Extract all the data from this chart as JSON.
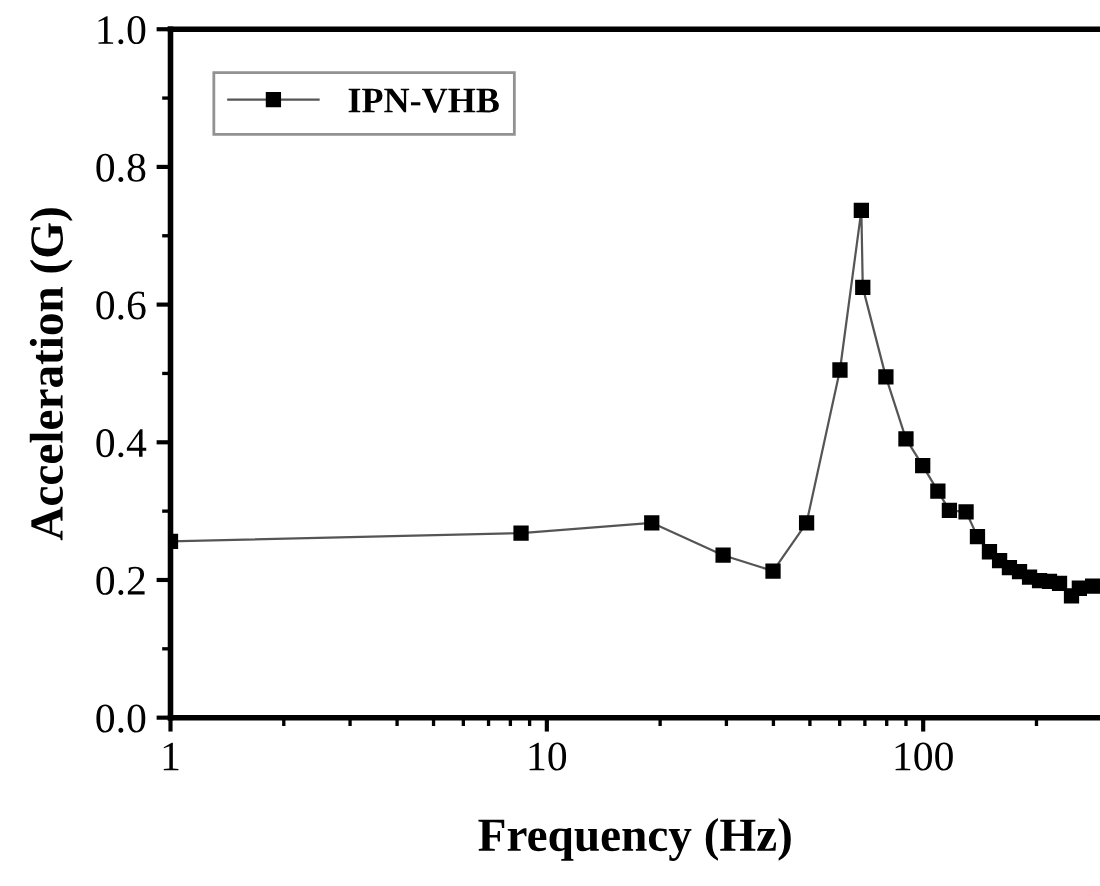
{
  "chart_data": {
    "type": "line",
    "xlabel": "Frequency (Hz)",
    "ylabel": "Acceleration (G)",
    "log": "x",
    "xlim": [
      1,
      295
    ],
    "xticks": [
      1,
      10,
      100
    ],
    "ylim": [
      0,
      1.0
    ],
    "yticks": [
      {
        "value": 0,
        "label": "0.0"
      },
      {
        "value": 0.2,
        "label": "0.2"
      },
      {
        "value": 0.4,
        "label": "0.4"
      },
      {
        "value": 0.6,
        "label": "0.6"
      },
      {
        "value": 0.8,
        "label": "0.8"
      },
      {
        "value": 1.0,
        "label": "1.0"
      }
    ],
    "grid": false,
    "legend": "top left",
    "marker": "square",
    "line_style": "solid",
    "series": [
      {
        "name": "IPN-VHB",
        "color": "#000000",
        "x": [
          1,
          8.54,
          19.0,
          29.4,
          39.9,
          49.0,
          60.1,
          68.5,
          69.1,
          79.6,
          90.0,
          99.7,
          109.4,
          117.4,
          130.0,
          139.4,
          150,
          159.6,
          169.5,
          180.3,
          191.7,
          203.8,
          216.6,
          230.3,
          247.8,
          260,
          282
        ],
        "values": [
          0.256,
          0.268,
          0.283,
          0.236,
          0.213,
          0.283,
          0.505,
          0.737,
          0.625,
          0.495,
          0.405,
          0.366,
          0.329,
          0.301,
          0.299,
          0.263,
          0.241,
          0.228,
          0.218,
          0.212,
          0.204,
          0.199,
          0.198,
          0.195,
          0.177,
          0.188,
          0.191
        ]
      }
    ]
  }
}
